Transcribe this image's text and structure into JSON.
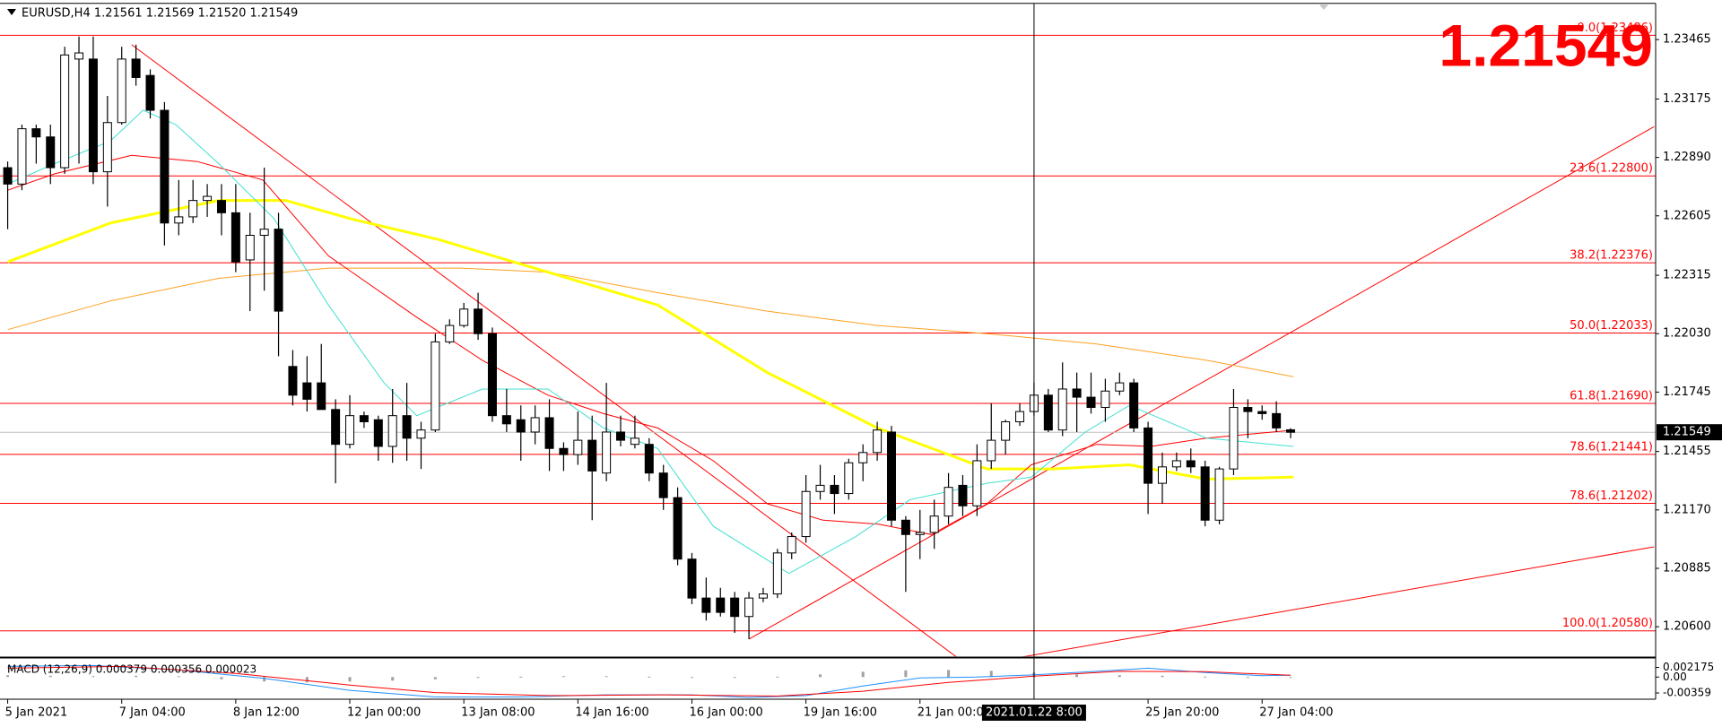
{
  "chart_data": {
    "type": "candlestick",
    "header": "EURUSD,H4  1.21561 1.21569 1.21520 1.21549",
    "last_price": 1.21549,
    "up_color": "#ffffff",
    "down_color": "#000000",
    "categories": [
      "5 Jan 2021",
      null,
      null,
      null,
      null,
      null,
      null,
      null,
      "7 Jan 04:00",
      null,
      null,
      null,
      null,
      null,
      null,
      null,
      "8 Jan 12:00",
      null,
      null,
      null,
      null,
      null,
      null,
      null,
      "12 Jan 00:00",
      null,
      null,
      null,
      null,
      null,
      null,
      null,
      "13 Jan 08:00",
      null,
      null,
      null,
      null,
      null,
      null,
      null,
      "14 Jan 16:00",
      null,
      null,
      null,
      null,
      null,
      null,
      null,
      "16 Jan 00:00",
      null,
      null,
      null,
      null,
      null,
      null,
      null,
      "19 Jan 16:00",
      null,
      null,
      null,
      null,
      null,
      null,
      null,
      "21 Jan 00:00",
      null,
      null,
      null,
      null,
      null,
      null,
      null,
      null,
      null,
      null,
      null,
      null,
      null,
      null,
      null,
      "25 Jan 20:00",
      null,
      null,
      null,
      null,
      null,
      null,
      null,
      "27 Jan 04:00",
      null,
      null
    ],
    "open": [
      1.2284,
      1.2276,
      1.2303,
      1.2299,
      1.2284,
      1.2337,
      1.2337,
      1.2282,
      1.2306,
      1.2337,
      1.2329,
      1.2312,
      1.2257,
      1.226,
      1.2268,
      1.2268,
      1.2262,
      1.2239,
      1.2251,
      1.2254,
      1.2187,
      1.2179,
      1.2179,
      1.2166,
      1.2149,
      1.2163,
      1.2161,
      1.2148,
      1.2163,
      1.2152,
      1.2156,
      1.2199,
      1.2207,
      1.2215,
      1.2203,
      1.2163,
      1.2161,
      1.2155,
      1.2162,
      1.2147,
      1.2144,
      1.2151,
      1.2135,
      1.2155,
      1.2149,
      1.2149,
      1.2135,
      1.2123,
      1.2093,
      1.2074,
      1.2074,
      1.2074,
      1.2065,
      1.2074,
      1.2076,
      1.2096,
      1.2104,
      1.2126,
      1.2129,
      1.2125,
      1.214,
      1.2145,
      1.2155,
      1.2112,
      1.2105,
      1.2106,
      1.2114,
      1.2129,
      1.2119,
      1.2141,
      1.2151,
      1.216,
      1.2165,
      1.2173,
      1.2156,
      1.2176,
      1.2172,
      1.2167,
      1.2175,
      1.2179,
      1.2157,
      1.213,
      1.2138,
      1.2141,
      1.2138,
      1.2112,
      1.2137,
      1.2167,
      1.2165,
      1.2164,
      1.21561
    ],
    "high": [
      1.2287,
      1.2305,
      1.2305,
      1.2305,
      1.2343,
      1.2348,
      1.2348,
      1.2319,
      1.2343,
      1.2344,
      1.2332,
      1.2316,
      1.2278,
      1.2278,
      1.2276,
      1.2276,
      1.2276,
      1.2262,
      1.2284,
      1.2262,
      1.2195,
      1.2192,
      1.2198,
      1.2171,
      1.2173,
      1.2165,
      1.2163,
      1.2176,
      1.2179,
      1.216,
      1.2203,
      1.221,
      1.2218,
      1.2223,
      1.2206,
      1.2176,
      1.2168,
      1.2168,
      1.2171,
      1.215,
      1.2165,
      1.2163,
      1.2179,
      1.2163,
      1.2163,
      1.2152,
      1.2139,
      1.2128,
      1.2096,
      1.2084,
      1.2079,
      1.2077,
      1.2077,
      1.2079,
      1.2098,
      1.2106,
      1.2134,
      1.2139,
      1.2134,
      1.2142,
      1.2149,
      1.216,
      1.2158,
      1.2114,
      1.2117,
      1.2122,
      1.2135,
      1.2134,
      1.2149,
      1.2169,
      1.2161,
      1.2169,
      1.2179,
      1.2176,
      1.2189,
      1.2184,
      1.2184,
      1.2181,
      1.2184,
      1.2181,
      1.216,
      1.2145,
      1.2145,
      1.2147,
      1.2141,
      1.2138,
      1.2176,
      1.2171,
      1.2168,
      1.217,
      1.21569
    ],
    "low": [
      1.2254,
      1.2273,
      1.2286,
      1.2276,
      1.2281,
      1.2286,
      1.2276,
      1.2265,
      1.2305,
      1.2324,
      1.2308,
      1.2246,
      1.2251,
      1.2257,
      1.226,
      1.2251,
      1.2233,
      1.2214,
      1.2224,
      1.2192,
      1.2168,
      1.2165,
      1.2166,
      1.213,
      1.2147,
      1.2157,
      1.2141,
      1.214,
      1.2141,
      1.2137,
      1.2155,
      1.2198,
      1.2206,
      1.22,
      1.216,
      1.2155,
      1.2141,
      1.2149,
      1.2136,
      1.2136,
      1.2139,
      1.2112,
      1.2131,
      1.2148,
      1.2147,
      1.2131,
      1.2117,
      1.209,
      1.2071,
      1.2063,
      1.2065,
      1.2057,
      1.2054,
      1.2072,
      1.2074,
      1.2093,
      1.2101,
      1.2122,
      1.2115,
      1.2122,
      1.2131,
      1.2141,
      1.2109,
      1.2077,
      1.2093,
      1.2098,
      1.211,
      1.2114,
      1.2114,
      1.2137,
      1.2144,
      1.2158,
      1.2163,
      1.2155,
      1.2153,
      1.2155,
      1.2164,
      1.216,
      1.2173,
      1.2155,
      1.2115,
      1.212,
      1.2136,
      1.2135,
      1.2109,
      1.211,
      1.2134,
      1.2152,
      1.2161,
      1.2155,
      1.2152
    ],
    "close": [
      1.2276,
      1.2303,
      1.2299,
      1.2284,
      1.2339,
      1.234,
      1.2282,
      1.2306,
      1.2337,
      1.2328,
      1.2312,
      1.2257,
      1.226,
      1.2268,
      1.227,
      1.2262,
      1.2238,
      1.2251,
      1.2254,
      1.2214,
      1.2173,
      1.2171,
      1.2166,
      1.2149,
      1.2163,
      1.216,
      1.2148,
      1.2163,
      1.2152,
      1.2156,
      1.2199,
      1.2207,
      1.2215,
      1.2203,
      1.2163,
      1.2159,
      1.2155,
      1.2162,
      1.2147,
      1.2144,
      1.2151,
      1.2136,
      1.2155,
      1.2151,
      1.2152,
      1.2135,
      1.2123,
      1.2093,
      1.2074,
      1.2067,
      1.2067,
      1.2065,
      1.2074,
      1.2076,
      1.2096,
      1.2104,
      1.2126,
      1.2129,
      1.2125,
      1.214,
      1.2145,
      1.2156,
      1.2112,
      1.2105,
      1.2106,
      1.2114,
      1.2128,
      1.2119,
      1.2141,
      1.2151,
      1.216,
      1.2165,
      1.2173,
      1.2156,
      1.2176,
      1.2172,
      1.2167,
      1.2175,
      1.2179,
      1.2157,
      1.213,
      1.2138,
      1.2141,
      1.2138,
      1.2112,
      1.2137,
      1.2167,
      1.2165,
      1.2164,
      1.2157,
      1.21549
    ],
    "ylim": [
      1.20455,
      1.23642
    ],
    "yticks": [
      1.23465,
      1.23175,
      {
        "value": 1.2289,
        "label": "1.22890"
      },
      1.22605,
      1.22315,
      {
        "value": 1.2203,
        "label": "1.22030"
      },
      1.21745,
      1.21455,
      {
        "value": 1.2117,
        "label": "1.21170"
      },
      1.20885,
      {
        "value": 1.206,
        "label": "1.20600"
      }
    ],
    "fib_levels": [
      {
        "value": 1.23486,
        "label": "0.0(1.23486)"
      },
      {
        "value": 1.228,
        "label": "23.6(1.22800)"
      },
      {
        "value": 1.22376,
        "label": "38.2(1.22376)"
      },
      {
        "value": 1.22033,
        "label": "50.0(1.22033)"
      },
      {
        "value": 1.2169,
        "label": "61.8(1.21690)"
      },
      {
        "value": 1.21441,
        "label": "78.6(1.21441)"
      },
      {
        "value": 1.21202,
        "label": "78.6(1.21202)"
      },
      {
        "value": 1.2058,
        "label": "100.0(1.20580)"
      }
    ],
    "indicators": [
      {
        "color": "#ffa020",
        "width": 1,
        "x": [
          0,
          7.2,
          14.8,
          22.5,
          31.8,
          37.9,
          45.6,
          53.3,
          61,
          68.7,
          76.4,
          84.1,
          90.2
        ],
        "values": [
          1.2205,
          1.2219,
          1.223,
          1.2235,
          1.2235,
          1.2233,
          1.2223,
          1.2214,
          1.2207,
          1.2203,
          1.2198,
          1.219,
          1.2182
        ]
      },
      {
        "color": "#ffff00",
        "width": 3,
        "x": [
          0,
          7.2,
          14.8,
          19.5,
          24.1,
          30.2,
          37.9,
          45.6,
          53.3,
          61,
          68.7,
          73.3,
          78.7,
          84.1,
          90.2
        ],
        "values": [
          1.2238,
          1.2257,
          1.2268,
          1.2268,
          1.2259,
          1.2249,
          1.2233,
          1.2217,
          1.2184,
          1.2157,
          1.2137,
          1.2137,
          1.2139,
          1.2132,
          1.2133
        ]
      },
      {
        "color": "#ff0000",
        "width": 1,
        "x": [
          0,
          3.3,
          8.7,
          13.3,
          17.9,
          22.5,
          28.7,
          33.3,
          37.9,
          41.8,
          45.6,
          49.5,
          53.3,
          57.2,
          61.1,
          64.8,
          68.7,
          71.8,
          76.4,
          80.2,
          84.1,
          90.2
        ],
        "values": [
          1.2273,
          1.2281,
          1.229,
          1.2287,
          1.2278,
          1.2241,
          1.2211,
          1.219,
          1.2173,
          1.2164,
          1.2157,
          1.2141,
          1.212,
          1.2112,
          1.211,
          1.2105,
          1.212,
          1.2139,
          1.2149,
          1.2148,
          1.2152,
          1.2156
        ]
      },
      {
        "color": "#40e0d0",
        "width": 1,
        "x": [
          0,
          3.3,
          7.2,
          9.5,
          11.8,
          14.8,
          18.7,
          22.5,
          26.4,
          28.7,
          33.3,
          37.9,
          41.8,
          45.6,
          49.5,
          54.8,
          59.5,
          63.3,
          68.7,
          71.8,
          75.6,
          78.7,
          84.1,
          90.2
        ],
        "values": [
          1.2276,
          1.2286,
          1.2297,
          1.2312,
          1.2305,
          1.2286,
          1.2259,
          1.2217,
          1.2179,
          1.2163,
          1.2176,
          1.2176,
          1.2157,
          1.2147,
          1.2109,
          1.2086,
          1.2104,
          1.2122,
          1.213,
          1.2133,
          1.2155,
          1.2168,
          1.2152,
          1.2148
        ]
      }
    ],
    "trendlines": [
      {
        "color": "#ff0000",
        "x": [
          8.7,
          66.8
        ],
        "values": [
          1.2344,
          1.2044
        ]
      },
      {
        "color": "#ff0000",
        "x": [
          52,
          115.5
        ],
        "values": [
          1.2054,
          1.2304
        ]
      },
      {
        "color": "#ff0000",
        "x": [
          71,
          115.5
        ],
        "values": [
          1.2045,
          1.2099
        ]
      }
    ],
    "crosshair": {
      "x": 72,
      "label": "2021.01.22 8:00"
    },
    "macd": {
      "label": "MACD (12,26,9) 0.000379 0.000356 0.000023",
      "ylim": [
        -0.005,
        0.0039
      ],
      "yticks": [
        0.002175,
        {
          "value": 0,
          "label": "0.00"
        },
        -0.00359
      ],
      "hist_x": [
        0,
        3,
        6,
        9,
        12,
        15,
        18,
        21,
        24,
        27,
        30,
        33,
        36,
        39,
        42,
        45,
        48,
        51,
        54,
        57,
        60,
        63,
        66,
        69,
        72,
        75,
        78,
        81,
        84,
        87,
        90
      ],
      "histogram": [
        0.0004,
        0.0003,
        0.0002,
        0.0003,
        0.0002,
        -0.0005,
        -0.001,
        -0.0012,
        -0.001,
        -0.0008,
        -0.0005,
        -0.0002,
        0.0001,
        0.0002,
        0.0002,
        0.0001,
        0,
        -0.0002,
        0.0001,
        0.0006,
        0.0012,
        0.0015,
        0.0016,
        0.0014,
        0.001,
        0.0006,
        0.0004,
        0.0003,
        0.0001,
        -0.0001,
        0
      ],
      "hist_color": "#a0a0a0",
      "lines": [
        {
          "color": "#1e90ff",
          "x": [
            0,
            6,
            12,
            18,
            24,
            30,
            36,
            42,
            48,
            52,
            56,
            60,
            64,
            68,
            72,
            76,
            80,
            84,
            88,
            90
          ],
          "values": [
            0.0024,
            0.0026,
            0.0016,
            -0.0003,
            -0.003,
            -0.0045,
            -0.0045,
            -0.004,
            -0.004,
            -0.0046,
            -0.0042,
            -0.002,
            -0.0002,
            0,
            0.0005,
            0.0012,
            0.002,
            0.001,
            0.0003,
            0.0004
          ]
        },
        {
          "color": "#ff0000",
          "x": [
            0,
            8,
            16,
            24,
            30,
            38,
            46,
            54,
            60,
            66,
            72,
            78,
            84,
            90
          ],
          "values": [
            0.002,
            0.0024,
            0.0008,
            -0.0018,
            -0.0035,
            -0.0042,
            -0.004,
            -0.0043,
            -0.0032,
            -0.0012,
            0.0002,
            0.0013,
            0.0012,
            0.0004
          ]
        }
      ]
    }
  }
}
